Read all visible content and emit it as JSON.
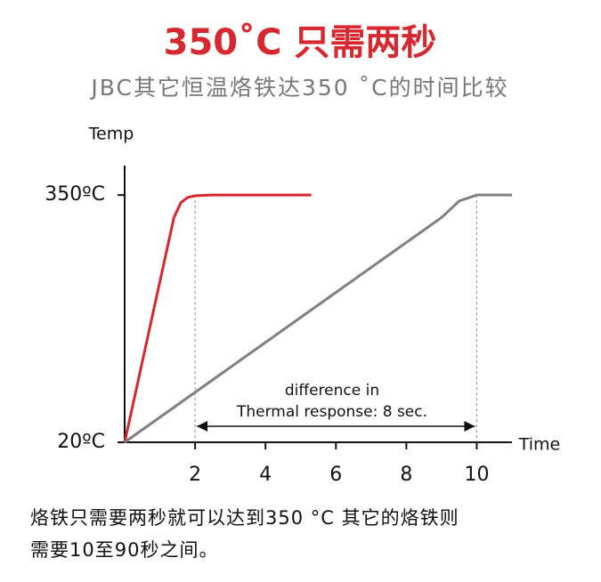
{
  "chart_data": {
    "type": "line",
    "title": "350˚C 只需两秒",
    "subtitle": "JBC其它恒温烙铁达350 ˚C的时间比较",
    "y_label": "Temp",
    "x_label": "Time",
    "xlim": [
      0,
      11
    ],
    "xticks": [
      2,
      4,
      6,
      8,
      10
    ],
    "ylim": [
      20,
      387
    ],
    "yticks": [
      {
        "value": 20,
        "label": "20ºC"
      },
      {
        "value": 350,
        "label": "350ºC"
      }
    ],
    "series": [
      {
        "color": "#d7282f",
        "x": [
          0,
          1.4,
          1.6,
          1.8,
          2,
          2.5,
          5.3
        ],
        "values": [
          20,
          320,
          340,
          347,
          349,
          350,
          350
        ]
      },
      {
        "color": "#808080",
        "x": [
          0,
          9,
          9.5,
          10,
          11
        ],
        "values": [
          20,
          320,
          342,
          350,
          350
        ]
      }
    ],
    "vlines": [
      2,
      10
    ],
    "annotation": [
      "difference in",
      "Thermal response: 8 sec."
    ],
    "caption": [
      "烙铁只需要两秒就可以达到350 °C 其它的烙铁则",
      "需要10至90秒之间。"
    ]
  }
}
